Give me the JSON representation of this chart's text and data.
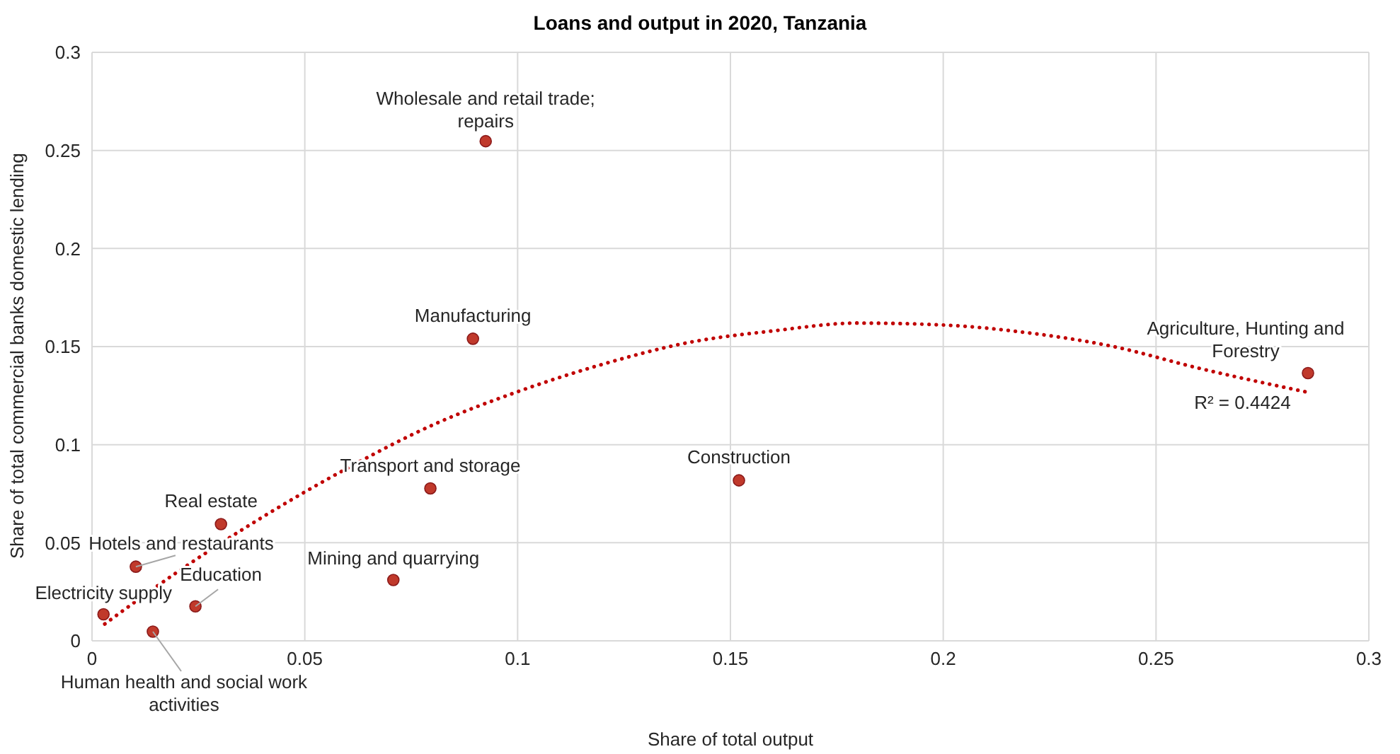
{
  "chart_data": {
    "type": "scatter",
    "title": "Loans and output in 2020, Tanzania",
    "xlabel": "Share of total output",
    "ylabel": "Share of total  commercial banks domestic lending",
    "xlim": [
      0,
      0.3
    ],
    "xticks": [
      0,
      0.05,
      0.1,
      0.15,
      0.2,
      0.25,
      0.3
    ],
    "ylim": [
      0,
      0.3
    ],
    "yticks": [
      0,
      0.05,
      0.1,
      0.15,
      0.2,
      0.25,
      0.3
    ],
    "grid": true,
    "legend": false,
    "marker": "circle",
    "annotations": [
      "R² = 0.4424"
    ],
    "series": [
      {
        "color": "#c0392b",
        "x": [
          0.0925,
          0.0895,
          0.2857,
          0.152,
          0.0795,
          0.0303,
          0.0103,
          0.0708,
          0.0243,
          0.0027,
          0.0143
        ],
        "values": [
          0.2547,
          0.154,
          0.1365,
          0.0818,
          0.0777,
          0.0595,
          0.0378,
          0.031,
          0.0176,
          0.0135,
          0.0047
        ],
        "value_labels": [
          "Wholesale and retail trade; repairs",
          "Manufacturing",
          "Agriculture, Hunting and Forestry",
          "Construction",
          "Transport and storage",
          "Real estate",
          "Hotels and restaurants",
          "Mining and quarrying",
          "Education",
          "Electricity supply",
          "Human health and social work activities"
        ]
      },
      {
        "type": "line",
        "color": "#c00000",
        "line_style": "dotted",
        "marker": "none",
        "x": [
          0.003,
          0.02,
          0.04,
          0.06,
          0.08,
          0.1,
          0.12,
          0.14,
          0.16,
          0.18,
          0.2,
          0.22,
          0.24,
          0.26,
          0.285
        ],
        "values": [
          0.0086,
          0.035,
          0.063,
          0.088,
          0.11,
          0.127,
          0.141,
          0.152,
          0.158,
          0.162,
          0.161,
          0.157,
          0.15,
          0.139,
          0.127
        ]
      }
    ]
  }
}
